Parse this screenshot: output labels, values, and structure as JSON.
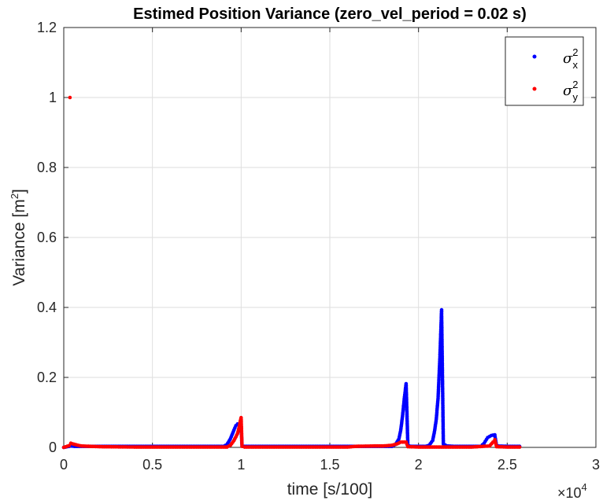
{
  "chart_data": {
    "type": "scatter",
    "title": "Estimed Position Variance (zero_vel_period = 0.02 s)",
    "xlabel": "time [s/100]",
    "ylabel_main": "Variance [m",
    "ylabel_sup": "2",
    "ylabel_close": "]",
    "xlim": [
      0,
      30000
    ],
    "ylim": [
      0,
      1.2
    ],
    "x_ticks": [
      0,
      5000,
      10000,
      15000,
      20000,
      25000,
      30000
    ],
    "x_tick_labels": [
      "0",
      "0.5",
      "1",
      "1.5",
      "2",
      "2.5",
      "3"
    ],
    "y_ticks": [
      0,
      0.2,
      0.4,
      0.6,
      0.8,
      1.0,
      1.2
    ],
    "y_tick_labels": [
      "0",
      "0.2",
      "0.4",
      "0.6",
      "0.8",
      "1",
      "1.2"
    ],
    "x_exponent_base": "×10",
    "x_exponent_power": "4",
    "grid": true,
    "legend_position": "top-right",
    "series": [
      {
        "name": "σ_x^2",
        "legend_symbol": "σ",
        "legend_sub": "x",
        "legend_sup": "2",
        "color": "#0000ff",
        "points": [
          [
            0,
            0
          ],
          [
            300,
            0.003
          ],
          [
            400,
            0.004
          ],
          [
            600,
            0.003
          ],
          [
            1000,
            0.003
          ],
          [
            2000,
            0.003
          ],
          [
            4000,
            0.003
          ],
          [
            6000,
            0.003
          ],
          [
            8000,
            0.003
          ],
          [
            9000,
            0.003
          ],
          [
            9200,
            0.008
          ],
          [
            9400,
            0.025
          ],
          [
            9600,
            0.05
          ],
          [
            9700,
            0.062
          ],
          [
            9800,
            0.067
          ],
          [
            9900,
            0.064
          ],
          [
            9950,
            0.06
          ],
          [
            10000,
            0.058
          ],
          [
            10050,
            0.005
          ],
          [
            10100,
            0.003
          ],
          [
            11000,
            0.003
          ],
          [
            13000,
            0.003
          ],
          [
            15000,
            0.003
          ],
          [
            17000,
            0.003
          ],
          [
            18500,
            0.003
          ],
          [
            18700,
            0.008
          ],
          [
            18900,
            0.025
          ],
          [
            19000,
            0.05
          ],
          [
            19100,
            0.09
          ],
          [
            19200,
            0.14
          ],
          [
            19300,
            0.182
          ],
          [
            19400,
            0.004
          ],
          [
            19600,
            0.003
          ],
          [
            20000,
            0.003
          ],
          [
            20400,
            0.003
          ],
          [
            20600,
            0.006
          ],
          [
            20800,
            0.02
          ],
          [
            20900,
            0.045
          ],
          [
            21000,
            0.08
          ],
          [
            21100,
            0.14
          ],
          [
            21200,
            0.25
          ],
          [
            21300,
            0.393
          ],
          [
            21400,
            0.01
          ],
          [
            21600,
            0.004
          ],
          [
            22000,
            0.003
          ],
          [
            23000,
            0.003
          ],
          [
            23500,
            0.003
          ],
          [
            23700,
            0.012
          ],
          [
            23900,
            0.028
          ],
          [
            24100,
            0.034
          ],
          [
            24300,
            0.036
          ],
          [
            24400,
            0.004
          ],
          [
            25000,
            0.003
          ],
          [
            25700,
            0.003
          ]
        ]
      },
      {
        "name": "σ_y^2",
        "legend_symbol": "σ",
        "legend_sub": "y",
        "legend_sup": "2",
        "color": "#ff0000",
        "points": [
          [
            0,
            0
          ],
          [
            300,
            0.005
          ],
          [
            350,
            1.0
          ],
          [
            400,
            0.012
          ],
          [
            500,
            0.01
          ],
          [
            800,
            0.006
          ],
          [
            1000,
            0.004
          ],
          [
            1500,
            0.003
          ],
          [
            2000,
            0.002
          ],
          [
            4000,
            0.001
          ],
          [
            6000,
            0.001
          ],
          [
            8000,
            0.001
          ],
          [
            9200,
            0.001
          ],
          [
            9400,
            0.006
          ],
          [
            9600,
            0.02
          ],
          [
            9800,
            0.04
          ],
          [
            9900,
            0.06
          ],
          [
            9950,
            0.075
          ],
          [
            10000,
            0.085
          ],
          [
            10050,
            0.003
          ],
          [
            10200,
            0.001
          ],
          [
            12000,
            0.001
          ],
          [
            14000,
            0.001
          ],
          [
            16000,
            0.001
          ],
          [
            16500,
            0.003
          ],
          [
            17500,
            0.004
          ],
          [
            18000,
            0.004
          ],
          [
            18500,
            0.006
          ],
          [
            18800,
            0.01
          ],
          [
            19000,
            0.015
          ],
          [
            19200,
            0.015
          ],
          [
            19300,
            0.015
          ],
          [
            19400,
            0.002
          ],
          [
            20000,
            0.001
          ],
          [
            21000,
            0.001
          ],
          [
            22000,
            0.001
          ],
          [
            23000,
            0.001
          ],
          [
            24000,
            0.004
          ],
          [
            24200,
            0.015
          ],
          [
            24300,
            0.022
          ],
          [
            24400,
            0.002
          ],
          [
            25000,
            0.001
          ],
          [
            25700,
            0.001
          ]
        ]
      }
    ]
  }
}
